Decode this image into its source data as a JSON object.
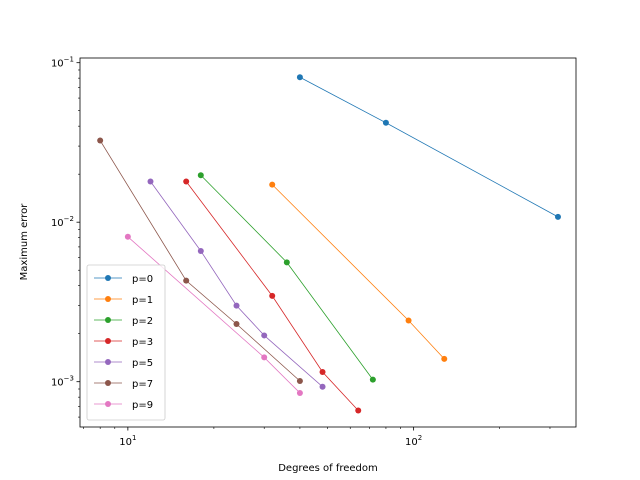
{
  "chart_data": {
    "type": "line",
    "title": "",
    "xlabel": "Degrees of freedom",
    "ylabel": "Maximum error",
    "xscale": "log",
    "yscale": "log",
    "xlim": [
      6.8,
      370
    ],
    "ylim": [
      0.00052,
      0.107
    ],
    "x_major_ticks": [
      {
        "value": 10,
        "base": "10",
        "exp": "1"
      },
      {
        "value": 100,
        "base": "10",
        "exp": "2"
      }
    ],
    "y_major_ticks": [
      {
        "value": 0.001,
        "base": "10",
        "exp": "−3"
      },
      {
        "value": 0.01,
        "base": "10",
        "exp": "−2"
      },
      {
        "value": 0.1,
        "base": "10",
        "exp": "−1"
      }
    ],
    "x_minor_ticks": [
      7,
      8,
      9,
      20,
      30,
      40,
      50,
      60,
      70,
      80,
      90,
      200,
      300
    ],
    "y_minor_ticks": [
      0.0006,
      0.0007,
      0.0008,
      0.0009,
      0.002,
      0.003,
      0.004,
      0.005,
      0.006,
      0.007,
      0.008,
      0.009,
      0.02,
      0.03,
      0.04,
      0.05,
      0.06,
      0.07,
      0.08,
      0.09
    ],
    "grid": false,
    "legend_position": "lower-left",
    "series": [
      {
        "name": "p=0",
        "color": "#1f77b4",
        "x": [
          40,
          80,
          320
        ],
        "y": [
          0.081,
          0.042,
          0.0108
        ]
      },
      {
        "name": "p=1",
        "color": "#ff7f0e",
        "x": [
          32,
          96,
          128
        ],
        "y": [
          0.0172,
          0.00242,
          0.00139
        ]
      },
      {
        "name": "p=2",
        "color": "#2ca02c",
        "x": [
          18,
          36,
          72
        ],
        "y": [
          0.0197,
          0.0056,
          0.00103
        ]
      },
      {
        "name": "p=3",
        "color": "#d62728",
        "x": [
          16,
          32,
          48,
          64
        ],
        "y": [
          0.018,
          0.00345,
          0.00115,
          0.00066
        ]
      },
      {
        "name": "p=5",
        "color": "#9467bd",
        "x": [
          12,
          18,
          24,
          30,
          48
        ],
        "y": [
          0.018,
          0.0066,
          0.003,
          0.00195,
          0.00093
        ]
      },
      {
        "name": "p=7",
        "color": "#8c564b",
        "x": [
          8,
          16,
          24,
          40
        ],
        "y": [
          0.0325,
          0.0043,
          0.0023,
          0.00101
        ]
      },
      {
        "name": "p=9",
        "color": "#e377c2",
        "x": [
          10,
          30,
          40
        ],
        "y": [
          0.0081,
          0.00142,
          0.00085
        ]
      }
    ]
  }
}
